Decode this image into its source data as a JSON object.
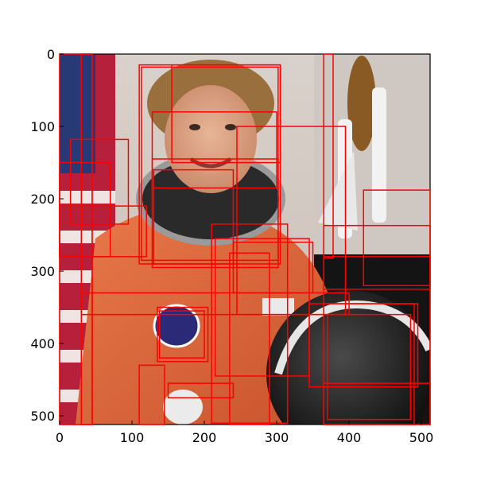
{
  "figure": {
    "image_description_icon": "astronaut-photo-icon",
    "axes": {
      "x_ticks": [
        "0",
        "100",
        "200",
        "300",
        "400",
        "500"
      ],
      "y_ticks": [
        "0",
        "100",
        "200",
        "300",
        "400",
        "500"
      ],
      "xlim": [
        0,
        512
      ],
      "ylim": [
        0,
        512
      ]
    },
    "box_color": "#ff0000",
    "boxes": [
      {
        "x0": 0,
        "y0": 0,
        "x1": 45,
        "y1": 512
      },
      {
        "x0": 30,
        "y0": 0,
        "x1": 45,
        "y1": 512
      },
      {
        "x0": 110,
        "y0": 15,
        "x1": 305,
        "y1": 290
      },
      {
        "x0": 113,
        "y0": 18,
        "x1": 302,
        "y1": 285
      },
      {
        "x0": 155,
        "y0": 15,
        "x1": 305,
        "y1": 150
      },
      {
        "x0": 128,
        "y0": 80,
        "x1": 300,
        "y1": 185
      },
      {
        "x0": 245,
        "y0": 100,
        "x1": 395,
        "y1": 360
      },
      {
        "x0": 15,
        "y0": 118,
        "x1": 95,
        "y1": 235
      },
      {
        "x0": 0,
        "y0": 150,
        "x1": 70,
        "y1": 280
      },
      {
        "x0": 128,
        "y0": 145,
        "x1": 302,
        "y1": 295
      },
      {
        "x0": 130,
        "y0": 160,
        "x1": 240,
        "y1": 290
      },
      {
        "x0": 0,
        "y0": 210,
        "x1": 120,
        "y1": 280
      },
      {
        "x0": 365,
        "y0": 0,
        "x1": 378,
        "y1": 282
      },
      {
        "x0": 520,
        "y0": 0,
        "x1": 540,
        "y1": 282
      },
      {
        "x0": 420,
        "y0": 188,
        "x1": 512,
        "y1": 320
      },
      {
        "x0": 365,
        "y0": 237,
        "x1": 512,
        "y1": 325
      },
      {
        "x0": 210,
        "y0": 235,
        "x1": 315,
        "y1": 510
      },
      {
        "x0": 215,
        "y0": 255,
        "x1": 345,
        "y1": 445
      },
      {
        "x0": 235,
        "y0": 275,
        "x1": 290,
        "y1": 512
      },
      {
        "x0": 240,
        "y0": 260,
        "x1": 350,
        "y1": 330
      },
      {
        "x0": 30,
        "y0": 330,
        "x1": 400,
        "y1": 360
      },
      {
        "x0": 135,
        "y0": 350,
        "x1": 205,
        "y1": 425
      },
      {
        "x0": 138,
        "y0": 355,
        "x1": 200,
        "y1": 420
      },
      {
        "x0": 110,
        "y0": 430,
        "x1": 145,
        "y1": 512
      },
      {
        "x0": 150,
        "y0": 455,
        "x1": 240,
        "y1": 475
      },
      {
        "x0": 345,
        "y0": 345,
        "x1": 495,
        "y1": 460
      },
      {
        "x0": 365,
        "y0": 345,
        "x1": 490,
        "y1": 512
      },
      {
        "x0": 370,
        "y0": 360,
        "x1": 485,
        "y1": 505
      },
      {
        "x0": 365,
        "y0": 455,
        "x1": 512,
        "y1": 512
      },
      {
        "x0": 365,
        "y0": 280,
        "x1": 512,
        "y1": 512
      }
    ]
  }
}
